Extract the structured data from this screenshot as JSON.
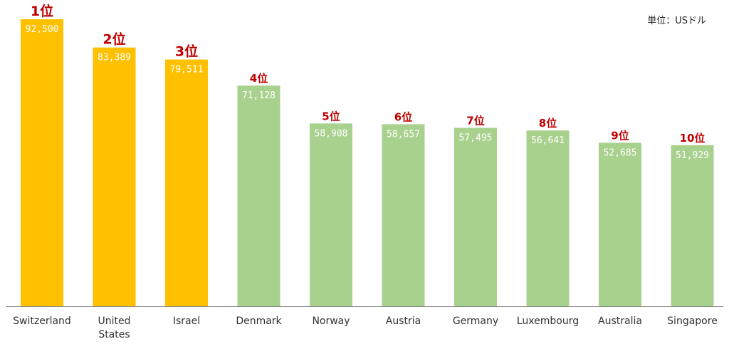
{
  "unit_label": "単位：USドル",
  "colors": {
    "top3": "#ffc000",
    "others": "#a9d18e",
    "rank": "#c00000",
    "axis": "#888888"
  },
  "chart_data": {
    "type": "bar",
    "title": "",
    "xlabel": "",
    "ylabel": "",
    "ylim": [
      0,
      95000
    ],
    "grid": false,
    "categories": [
      [
        "Switzerland"
      ],
      [
        "United",
        "States"
      ],
      [
        "Israel"
      ],
      [
        "Denmark"
      ],
      [
        "Norway"
      ],
      [
        "Austria"
      ],
      [
        "Germany"
      ],
      [
        "Luxembourg"
      ],
      [
        "Australia"
      ],
      [
        "Singapore"
      ]
    ],
    "values": [
      92500,
      83389,
      79511,
      71128,
      58908,
      58657,
      57495,
      56641,
      52685,
      51929
    ],
    "value_labels": [
      "92,500",
      "83,389",
      "79,511",
      "71,128",
      "58,908",
      "58,657",
      "57,495",
      "56,641",
      "52,685",
      "51,929"
    ],
    "rank_labels": [
      "1位",
      "2位",
      "3位",
      "4位",
      "5位",
      "6位",
      "7位",
      "8位",
      "9位",
      "10位"
    ],
    "highlight_count": 3
  }
}
